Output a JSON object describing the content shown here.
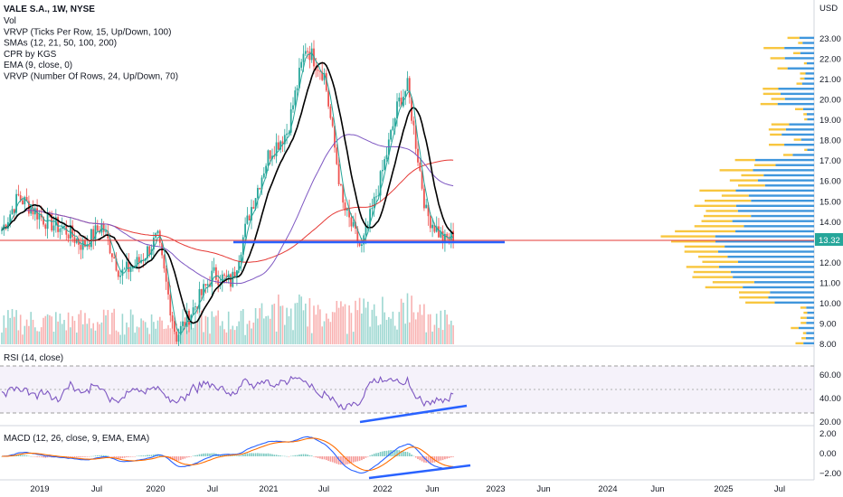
{
  "header": {
    "symbol": "VALE S.A., 1W, NYSE",
    "indicators": [
      "Vol",
      "VRVP (Ticks Per Row, 15, Up/Down, 100)",
      "SMAs (12, 21, 50, 100, 200)",
      "CPR by KGS",
      "EMA (9, close, 0)",
      "VRVP (Number Of Rows, 24, Up/Down, 70)"
    ]
  },
  "price_axis": {
    "currency": "USD",
    "ticks": [
      "23.00",
      "22.00",
      "21.00",
      "20.00",
      "19.00",
      "18.00",
      "17.00",
      "16.00",
      "15.00",
      "14.00",
      "13.00",
      "12.00",
      "11.00",
      "10.00",
      "9.00",
      "8.00"
    ],
    "last_price": "13.32",
    "last_price_color": "#26a69a"
  },
  "rsi": {
    "label": "RSI (14, close)",
    "ticks": [
      "60.00",
      "40.00",
      "20.00"
    ]
  },
  "macd": {
    "label": "MACD (12, 26, close, 9, EMA, EMA)",
    "ticks": [
      "2.00",
      "0.00",
      "−2.00"
    ]
  },
  "time_axis": {
    "labels": [
      "2019",
      "Jul",
      "2020",
      "Jul",
      "2021",
      "Jul",
      "2022",
      "Jun",
      "2023",
      "Jun",
      "2024",
      "Jun",
      "2025",
      "Jul"
    ]
  },
  "colors": {
    "up": "#26a69a",
    "down": "#ef5350",
    "profile_up": "#2a8bd8",
    "profile_down": "#f7c02a",
    "ema": "#000000",
    "sma_purple": "#7e57c2",
    "sma_red": "#e53935",
    "rsi_line": "#7e57c2",
    "macd_line": "#2962ff",
    "signal_line": "#ff6d00",
    "trendline": "#2962ff"
  },
  "chart_data": {
    "type": "candlestick",
    "x_range": [
      "2018-08",
      "2025-10"
    ],
    "y_range": [
      8.0,
      23.5
    ],
    "close_series_approx": [
      {
        "date": "2018-08",
        "close": 13.4
      },
      {
        "date": "2018-10",
        "close": 15.2
      },
      {
        "date": "2019-01",
        "close": 14.0
      },
      {
        "date": "2019-03",
        "close": 13.6
      },
      {
        "date": "2019-05",
        "close": 12.8
      },
      {
        "date": "2019-07",
        "close": 13.8
      },
      {
        "date": "2019-09",
        "close": 11.4
      },
      {
        "date": "2019-11",
        "close": 12.0
      },
      {
        "date": "2020-01",
        "close": 13.2
      },
      {
        "date": "2020-03",
        "close": 8.3
      },
      {
        "date": "2020-05",
        "close": 9.8
      },
      {
        "date": "2020-07",
        "close": 11.4
      },
      {
        "date": "2020-09",
        "close": 11.0
      },
      {
        "date": "2020-11",
        "close": 14.5
      },
      {
        "date": "2021-01",
        "close": 17.3
      },
      {
        "date": "2021-03",
        "close": 18.4
      },
      {
        "date": "2021-05",
        "close": 22.6
      },
      {
        "date": "2021-07",
        "close": 21.2
      },
      {
        "date": "2021-09",
        "close": 14.8
      },
      {
        "date": "2021-11",
        "close": 12.6
      },
      {
        "date": "2022-01",
        "close": 15.9
      },
      {
        "date": "2022-03",
        "close": 19.8
      },
      {
        "date": "2022-04",
        "close": 20.6
      },
      {
        "date": "2022-06",
        "close": 14.4
      },
      {
        "date": "2022-08",
        "close": 13.0
      },
      {
        "date": "2022-09",
        "close": 13.32
      }
    ],
    "horizontal_levels": [
      13.32,
      13.05
    ]
  }
}
